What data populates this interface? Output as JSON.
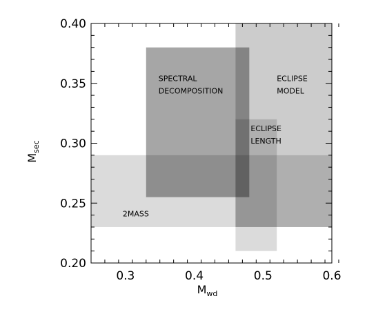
{
  "chart_data": {
    "type": "area",
    "title": "",
    "xlabel": {
      "main": "M",
      "sub": "wd"
    },
    "ylabel": {
      "main": "M",
      "sub": "sec"
    },
    "xlim": [
      0.25,
      0.6
    ],
    "ylim": [
      0.2,
      0.4
    ],
    "xticks": [
      {
        "value": 0.3,
        "label": "0.3"
      },
      {
        "value": 0.4,
        "label": "0.4"
      },
      {
        "value": 0.5,
        "label": "0.5"
      },
      {
        "value": 0.6,
        "label": "0.6"
      }
    ],
    "yticks": [
      {
        "value": 0.2,
        "label": "0.20"
      },
      {
        "value": 0.25,
        "label": "0.25"
      },
      {
        "value": 0.3,
        "label": "0.30"
      },
      {
        "value": 0.35,
        "label": "0.35"
      },
      {
        "value": 0.4,
        "label": "0.40"
      }
    ],
    "grid": false,
    "regions": [
      {
        "name": "2MASS",
        "x_range": [
          0.25,
          0.6
        ],
        "y_range": [
          0.23,
          0.29
        ]
      },
      {
        "name": "SPECTRAL DECOMPOSITION",
        "x_range": [
          0.33,
          0.48
        ],
        "y_range": [
          0.255,
          0.38
        ]
      },
      {
        "name": "ECLIPSE MODEL",
        "x_range": [
          0.46,
          0.6
        ],
        "y_range": [
          0.23,
          0.4
        ]
      },
      {
        "name": "ECLIPSE LENGTH",
        "x_range": [
          0.46,
          0.52
        ],
        "y_range": [
          0.21,
          0.32
        ]
      }
    ],
    "region_labels": [
      {
        "lines": [
          "SPECTRAL",
          "DECOMPOSITION"
        ],
        "x": 0.348,
        "y": 0.352
      },
      {
        "lines": [
          "ECLIPSE",
          "MODEL"
        ],
        "x": 0.52,
        "y": 0.352
      },
      {
        "lines": [
          "ECLIPSE",
          "LENGTH"
        ],
        "x": 0.482,
        "y": 0.31
      },
      {
        "lines": [
          "2MASS"
        ],
        "x": 0.296,
        "y": 0.239
      }
    ]
  }
}
